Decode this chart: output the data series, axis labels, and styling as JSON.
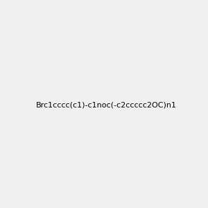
{
  "smiles": "Brc1cccc(c1)-c1noc(-c2ccccc2OC)n1",
  "title": "",
  "background_color": "#f0f0f0",
  "bond_color": "#000000",
  "atom_colors": {
    "Br": "#cc7000",
    "N": "#0000ff",
    "O": "#ff0000",
    "C": "#000000"
  },
  "figsize": [
    3.0,
    3.0
  ],
  "dpi": 100
}
